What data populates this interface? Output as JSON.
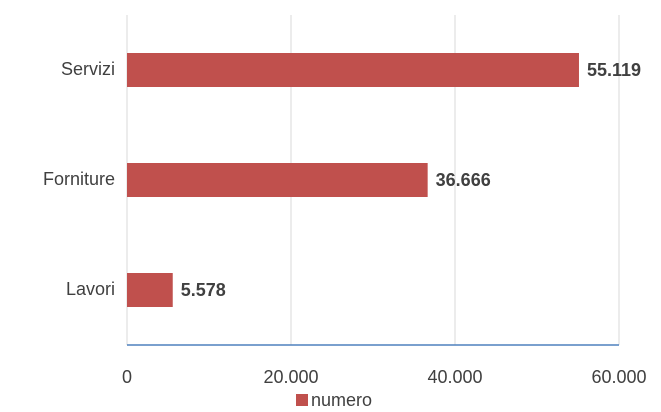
{
  "chart_data": {
    "type": "bar",
    "orientation": "horizontal",
    "categories": [
      "Servizi",
      "Forniture",
      "Lavori"
    ],
    "series": [
      {
        "name": "numero",
        "color": "#c0504d",
        "values": [
          55119,
          36666,
          5578
        ],
        "value_labels": [
          "55.119",
          "36.666",
          "5.578"
        ]
      }
    ],
    "xlim": [
      0,
      60000
    ],
    "xticks": [
      0,
      {
        "value": 20000,
        "label": "20.000"
      },
      {
        "value": 40000,
        "label": "40.000"
      },
      {
        "value": 60000,
        "label": "60.000"
      }
    ],
    "grid": true,
    "legend": "bottom"
  }
}
